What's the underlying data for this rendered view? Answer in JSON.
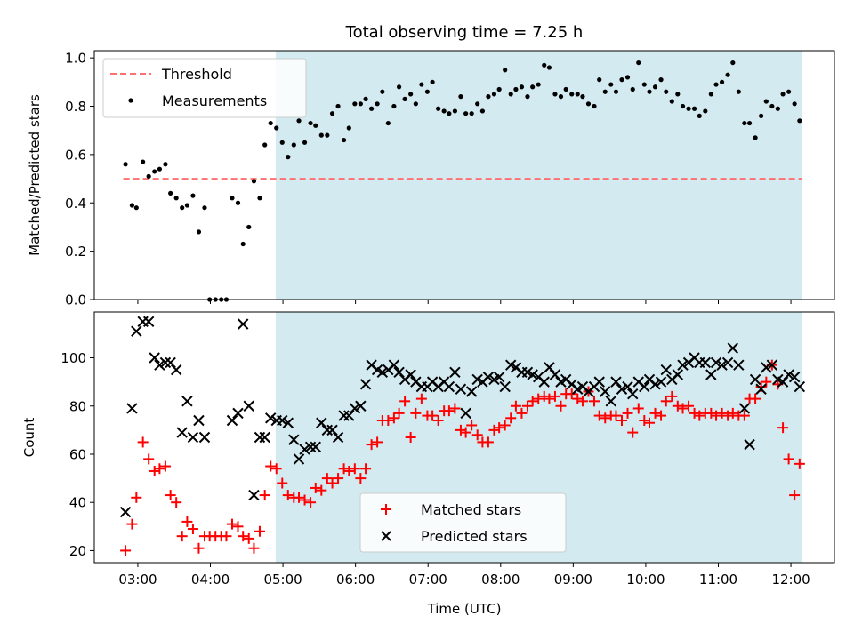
{
  "figure": {
    "title": "Total observing time = 7.25 h"
  },
  "chart_data": [
    {
      "type": "scatter",
      "ylabel": "Matched/Predicted stars",
      "xlabel": "",
      "xlim": [
        2.4,
        12.6
      ],
      "ylim": [
        0,
        1.03
      ],
      "yticks": [
        0.0,
        0.2,
        0.4,
        0.6,
        0.8,
        1.0
      ],
      "ytick_labels": [
        "0.0",
        "0.2",
        "0.4",
        "0.6",
        "0.8",
        "1.0"
      ],
      "xticks": [
        3,
        4,
        5,
        6,
        7,
        8,
        9,
        10,
        11,
        12
      ],
      "xtick_labels": [
        "",
        "",
        "",
        "",
        "",
        "",
        "",
        "",
        "",
        ""
      ],
      "shaded_region": {
        "x_start": 4.9,
        "x_end": 12.15,
        "color": "#d4eaf1"
      },
      "threshold": {
        "name": "Threshold",
        "y": 0.5,
        "x_start": 2.8,
        "x_end": 12.15,
        "color": "#ff7070",
        "style": "dashed"
      },
      "legend": {
        "placement": "top-left",
        "entries": [
          "Threshold",
          "Measurements"
        ]
      },
      "series": [
        {
          "name": "Measurements",
          "marker": "dot",
          "color": "#000000",
          "x": [
            2.83,
            2.92,
            2.98,
            3.07,
            3.15,
            3.23,
            3.3,
            3.38,
            3.45,
            3.53,
            3.61,
            3.68,
            3.76,
            3.84,
            3.92,
            3.99,
            4.07,
            4.15,
            4.22,
            4.3,
            4.38,
            4.45,
            4.53,
            4.6,
            4.68,
            4.75,
            4.83,
            4.91,
            4.99,
            5.07,
            5.15,
            5.22,
            5.3,
            5.38,
            5.45,
            5.53,
            5.61,
            5.68,
            5.76,
            5.84,
            5.91,
            5.99,
            6.07,
            6.14,
            6.22,
            6.3,
            6.37,
            6.45,
            6.53,
            6.6,
            6.68,
            6.76,
            6.83,
            6.91,
            6.99,
            7.06,
            7.14,
            7.22,
            7.29,
            7.37,
            7.45,
            7.52,
            7.6,
            7.68,
            7.75,
            7.83,
            7.91,
            7.98,
            8.06,
            8.14,
            8.21,
            8.29,
            8.37,
            8.44,
            8.52,
            8.6,
            8.67,
            8.75,
            8.83,
            8.9,
            8.98,
            9.06,
            9.13,
            9.21,
            9.29,
            9.36,
            9.44,
            9.52,
            9.59,
            9.67,
            9.75,
            9.82,
            9.9,
            9.98,
            10.05,
            10.13,
            10.21,
            10.28,
            10.36,
            10.44,
            10.51,
            10.59,
            10.67,
            10.74,
            10.82,
            10.9,
            10.97,
            11.05,
            11.13,
            11.2,
            11.28,
            11.36,
            11.43,
            11.51,
            11.59,
            11.66,
            11.74,
            11.82,
            11.89,
            11.97,
            12.05,
            12.12
          ],
          "y": [
            0.56,
            0.39,
            0.38,
            0.57,
            0.51,
            0.53,
            0.54,
            0.56,
            0.44,
            0.42,
            0.38,
            0.39,
            0.43,
            0.28,
            0.38,
            0.0,
            0.0,
            0.0,
            0.0,
            0.42,
            0.4,
            0.23,
            0.3,
            0.49,
            0.42,
            0.64,
            0.73,
            0.71,
            0.65,
            0.59,
            0.64,
            0.74,
            0.65,
            0.73,
            0.72,
            0.68,
            0.68,
            0.77,
            0.8,
            0.66,
            0.71,
            0.81,
            0.81,
            0.83,
            0.79,
            0.81,
            0.86,
            0.73,
            0.8,
            0.88,
            0.83,
            0.85,
            0.81,
            0.89,
            0.86,
            0.9,
            0.79,
            0.78,
            0.77,
            0.78,
            0.84,
            0.77,
            0.77,
            0.81,
            0.78,
            0.84,
            0.85,
            0.87,
            0.95,
            0.85,
            0.87,
            0.88,
            0.84,
            0.88,
            0.89,
            0.97,
            0.96,
            0.85,
            0.84,
            0.87,
            0.85,
            0.85,
            0.84,
            0.81,
            0.8,
            0.91,
            0.86,
            0.89,
            0.86,
            0.91,
            0.92,
            0.87,
            0.98,
            0.89,
            0.86,
            0.88,
            0.91,
            0.86,
            0.82,
            0.85,
            0.8,
            0.79,
            0.79,
            0.76,
            0.78,
            0.85,
            0.89,
            0.9,
            0.93,
            0.98,
            0.86,
            0.73,
            0.73,
            0.67,
            0.76,
            0.82,
            0.8,
            0.79,
            0.85,
            0.86,
            0.81,
            0.74
          ]
        }
      ]
    },
    {
      "type": "scatter",
      "ylabel": "Count",
      "xlabel": "Time (UTC)",
      "xlim": [
        2.4,
        12.6
      ],
      "ylim": [
        15,
        119
      ],
      "yticks": [
        20,
        40,
        60,
        80,
        100
      ],
      "ytick_labels": [
        "20",
        "40",
        "60",
        "80",
        "100"
      ],
      "xticks": [
        3,
        4,
        5,
        6,
        7,
        8,
        9,
        10,
        11,
        12
      ],
      "xtick_labels": [
        "03:00",
        "04:00",
        "05:00",
        "06:00",
        "07:00",
        "08:00",
        "09:00",
        "10:00",
        "11:00",
        "12:00"
      ],
      "shaded_region": {
        "x_start": 4.9,
        "x_end": 12.15,
        "color": "#d4eaf1"
      },
      "legend": {
        "placement": "bottom-center",
        "entries": [
          "Matched stars",
          "Predicted stars"
        ]
      },
      "series": [
        {
          "name": "Matched stars",
          "marker": "plus",
          "color": "#ff0000",
          "x": [
            2.83,
            2.92,
            2.98,
            3.07,
            3.15,
            3.23,
            3.3,
            3.38,
            3.45,
            3.53,
            3.61,
            3.68,
            3.76,
            3.84,
            3.92,
            3.99,
            4.07,
            4.15,
            4.22,
            4.3,
            4.38,
            4.45,
            4.53,
            4.6,
            4.68,
            4.75,
            4.83,
            4.91,
            4.99,
            5.07,
            5.15,
            5.22,
            5.3,
            5.38,
            5.45,
            5.53,
            5.61,
            5.68,
            5.76,
            5.84,
            5.91,
            5.99,
            6.07,
            6.14,
            6.22,
            6.3,
            6.37,
            6.45,
            6.53,
            6.6,
            6.68,
            6.76,
            6.83,
            6.91,
            6.99,
            7.06,
            7.14,
            7.22,
            7.29,
            7.37,
            7.45,
            7.52,
            7.6,
            7.68,
            7.75,
            7.83,
            7.91,
            7.98,
            8.06,
            8.14,
            8.21,
            8.29,
            8.37,
            8.44,
            8.52,
            8.6,
            8.67,
            8.75,
            8.83,
            8.9,
            8.98,
            9.06,
            9.13,
            9.21,
            9.29,
            9.36,
            9.44,
            9.52,
            9.59,
            9.67,
            9.75,
            9.82,
            9.9,
            9.98,
            10.05,
            10.13,
            10.21,
            10.28,
            10.36,
            10.44,
            10.51,
            10.59,
            10.67,
            10.74,
            10.82,
            10.9,
            10.97,
            11.05,
            11.13,
            11.2,
            11.28,
            11.36,
            11.43,
            11.51,
            11.59,
            11.66,
            11.74,
            11.82,
            11.89,
            11.97,
            12.05,
            12.12
          ],
          "y": [
            20,
            31,
            42,
            65,
            58,
            53,
            54,
            55,
            43,
            40,
            26,
            32,
            29,
            21,
            26,
            26,
            26,
            26,
            26,
            31,
            30,
            26,
            25,
            21,
            28,
            43,
            55,
            54,
            48,
            43,
            42,
            42,
            41,
            40,
            46,
            45,
            50,
            48,
            50,
            54,
            53,
            54,
            50,
            54,
            64,
            65,
            74,
            74,
            75,
            77,
            82,
            67,
            77,
            83,
            76,
            76,
            74,
            78,
            78,
            79,
            70,
            69,
            72,
            68,
            65,
            65,
            70,
            71,
            72,
            75,
            80,
            77,
            80,
            82,
            83,
            84,
            83,
            84,
            80,
            85,
            85,
            83,
            82,
            86,
            82,
            76,
            75,
            76,
            76,
            74,
            77,
            69,
            79,
            74,
            73,
            77,
            76,
            82,
            84,
            80,
            79,
            80,
            77,
            76,
            77,
            77,
            76,
            77,
            76,
            77,
            76,
            76,
            83,
            83,
            88,
            90,
            97,
            89,
            71,
            58,
            43,
            56
          ]
        },
        {
          "name": "Predicted stars",
          "marker": "x",
          "color": "#000000",
          "x": [
            2.83,
            2.92,
            2.98,
            3.07,
            3.15,
            3.23,
            3.3,
            3.38,
            3.45,
            3.53,
            3.61,
            3.68,
            3.76,
            3.84,
            3.92,
            3.99,
            4.07,
            4.15,
            4.22,
            4.3,
            4.38,
            4.45,
            4.53,
            4.6,
            4.68,
            4.75,
            4.83,
            4.91,
            4.99,
            5.07,
            5.15,
            5.22,
            5.3,
            5.38,
            5.45,
            5.53,
            5.61,
            5.68,
            5.76,
            5.84,
            5.91,
            5.99,
            6.07,
            6.14,
            6.22,
            6.3,
            6.37,
            6.45,
            6.53,
            6.6,
            6.68,
            6.76,
            6.83,
            6.91,
            6.99,
            7.06,
            7.14,
            7.22,
            7.29,
            7.37,
            7.45,
            7.52,
            7.6,
            7.68,
            7.75,
            7.83,
            7.91,
            7.98,
            8.06,
            8.14,
            8.21,
            8.29,
            8.37,
            8.44,
            8.52,
            8.6,
            8.67,
            8.75,
            8.83,
            8.9,
            8.98,
            9.06,
            9.13,
            9.21,
            9.29,
            9.36,
            9.44,
            9.52,
            9.59,
            9.67,
            9.75,
            9.82,
            9.9,
            9.98,
            10.05,
            10.13,
            10.21,
            10.28,
            10.36,
            10.44,
            10.51,
            10.59,
            10.67,
            10.74,
            10.82,
            10.9,
            10.97,
            11.05,
            11.13,
            11.2,
            11.28,
            11.36,
            11.43,
            11.51,
            11.59,
            11.66,
            11.74,
            11.82,
            11.89,
            11.97,
            12.05,
            12.12
          ],
          "y": [
            36,
            79,
            111,
            115,
            115,
            100,
            97,
            98,
            98,
            95,
            69,
            82,
            67,
            74,
            67,
            null,
            null,
            null,
            null,
            74,
            77,
            114,
            80,
            43,
            67,
            67,
            75,
            74,
            74,
            73,
            66,
            58,
            62,
            63,
            63,
            73,
            70,
            70,
            67,
            76,
            76,
            79,
            80,
            89,
            97,
            95,
            94,
            95,
            97,
            94,
            91,
            93,
            90,
            88,
            88,
            90,
            88,
            90,
            88,
            94,
            87,
            77,
            86,
            91,
            90,
            92,
            91,
            92,
            88,
            97,
            96,
            94,
            94,
            93,
            92,
            90,
            96,
            93,
            90,
            91,
            89,
            87,
            88,
            86,
            88,
            90,
            86,
            82,
            90,
            87,
            88,
            85,
            90,
            88,
            91,
            89,
            90,
            95,
            91,
            93,
            97,
            98,
            100,
            98,
            98,
            93,
            98,
            97,
            98,
            104,
            97,
            79,
            64,
            91,
            87,
            96,
            97,
            91,
            90,
            93,
            92,
            88
          ]
        }
      ]
    }
  ]
}
